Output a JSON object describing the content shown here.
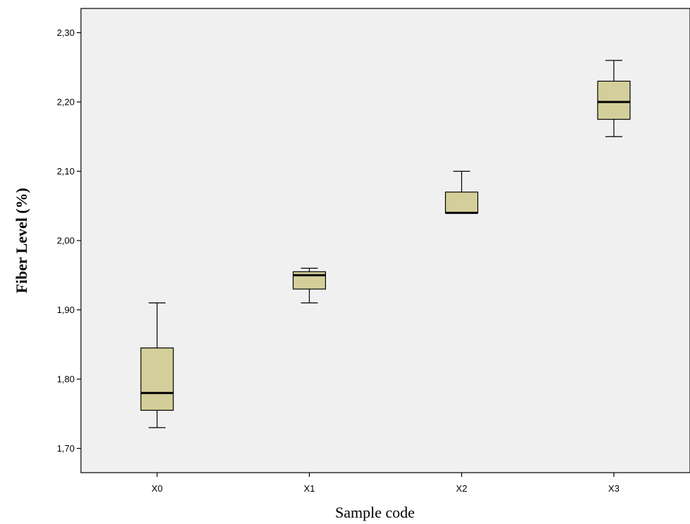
{
  "chart_data": {
    "type": "boxplot",
    "title": "",
    "xlabel": "Sample code",
    "ylabel": "Fiber Level   (%)",
    "ylim": [
      1.665,
      2.335
    ],
    "yticks": [
      1.7,
      1.8,
      1.9,
      2.0,
      2.1,
      2.2,
      2.3
    ],
    "ytick_labels": [
      "1,70",
      "1,80",
      "1,90",
      "2,00",
      "2,10",
      "2,20",
      "2,30"
    ],
    "categories": [
      "X0",
      "X1",
      "X2",
      "X3"
    ],
    "boxes": [
      {
        "category": "X0",
        "min": 1.73,
        "q1": 1.755,
        "median": 1.78,
        "q3": 1.845,
        "max": 1.91
      },
      {
        "category": "X1",
        "min": 1.91,
        "q1": 1.93,
        "median": 1.95,
        "q3": 1.955,
        "max": 1.96
      },
      {
        "category": "X2",
        "min": 2.04,
        "q1": 2.04,
        "median": 2.04,
        "q3": 2.07,
        "max": 2.1
      },
      {
        "category": "X3",
        "min": 2.15,
        "q1": 2.175,
        "median": 2.2,
        "q3": 2.23,
        "max": 2.26
      }
    ],
    "grid": false,
    "box_fill": "#d4cf9a",
    "plot_background": "#f0f0f0"
  }
}
